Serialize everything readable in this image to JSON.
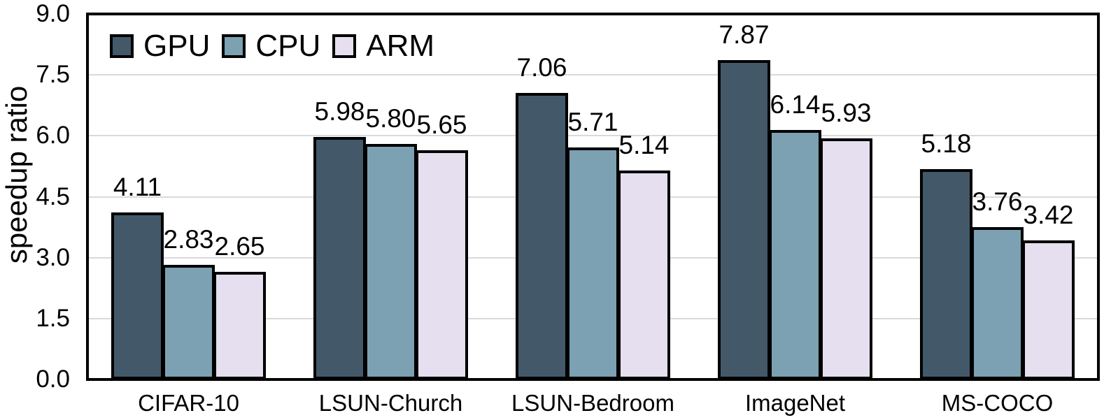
{
  "chart_data": {
    "type": "bar",
    "title": "",
    "xlabel": "",
    "ylabel": "speedup ratio",
    "categories": [
      "CIFAR-10",
      "LSUN-Church",
      "LSUN-Bedroom",
      "ImageNet",
      "MS-COCO"
    ],
    "series": [
      {
        "name": "GPU",
        "color": "#43596A",
        "values": [
          4.11,
          5.98,
          7.06,
          7.87,
          5.18
        ]
      },
      {
        "name": "CPU",
        "color": "#7CA1B2",
        "values": [
          2.83,
          5.8,
          5.71,
          6.14,
          3.76
        ]
      },
      {
        "name": "ARM",
        "color": "#E6DFEF",
        "values": [
          2.65,
          5.65,
          5.14,
          5.93,
          3.42
        ]
      }
    ],
    "ylim": [
      0,
      9
    ],
    "yticks": [
      0.0,
      1.5,
      3.0,
      4.5,
      6.0,
      7.5,
      9.0
    ],
    "ytick_labels": [
      "0.0",
      "1.5",
      "3.0",
      "4.5",
      "6.0",
      "7.5",
      "9.0"
    ],
    "value_label_decimals": 2,
    "grid": "horizontal",
    "gridline_color": "#D9D9D9",
    "frame_color": "#000000",
    "text_color": "#000000",
    "background_color": "#FFFFFF",
    "legend_position": "top-left-inside",
    "legend_labels": [
      "GPU",
      "CPU",
      "ARM"
    ]
  }
}
